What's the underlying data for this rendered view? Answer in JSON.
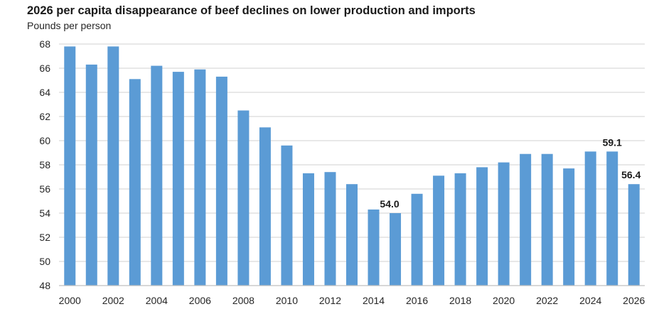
{
  "chart_data": {
    "type": "bar",
    "title": "2026 per capita disappearance of beef declines on lower production and imports",
    "xlabel": "",
    "ylabel": "Pounds per person",
    "ylim": [
      48,
      68
    ],
    "yticks": [
      48,
      50,
      52,
      54,
      56,
      58,
      60,
      62,
      64,
      66,
      68
    ],
    "grid": true,
    "legend": "none",
    "bar_color": "#5b9bd5",
    "categories": [
      "2000",
      "2001",
      "2002",
      "2003",
      "2004",
      "2005",
      "2006",
      "2007",
      "2008",
      "2009",
      "2010",
      "2011",
      "2012",
      "2013",
      "2014",
      "2015",
      "2016",
      "2017",
      "2018",
      "2019",
      "2020",
      "2021",
      "2022",
      "2023",
      "2024",
      "2025",
      "2026"
    ],
    "xtick_labels": [
      "2000",
      "2002",
      "2004",
      "2006",
      "2008",
      "2010",
      "2012",
      "2014",
      "2016",
      "2018",
      "2020",
      "2022",
      "2024",
      "2026"
    ],
    "values": [
      67.8,
      66.3,
      67.8,
      65.1,
      66.2,
      65.7,
      65.9,
      65.3,
      62.5,
      61.1,
      59.6,
      57.3,
      57.4,
      56.4,
      54.3,
      54.0,
      55.6,
      57.1,
      57.3,
      57.8,
      58.2,
      58.9,
      58.9,
      57.7,
      59.1,
      59.1,
      56.4
    ],
    "annotations": [
      {
        "category": "2015",
        "text": "54.0"
      },
      {
        "category": "2025",
        "text": "59.1"
      },
      {
        "category": "2026",
        "text": "56.4"
      }
    ]
  }
}
